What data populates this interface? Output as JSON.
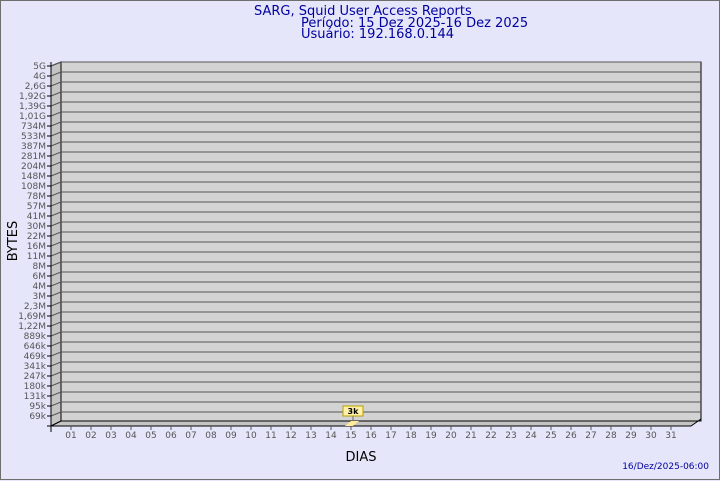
{
  "header": {
    "title": "SARG, Squid User Access Reports",
    "period": "Período: 15 Dez 2025-16 Dez 2025",
    "user": "Usuário: 192.168.0.144"
  },
  "footer": {
    "timestamp": "16/Dez/2025-06:00"
  },
  "colors": {
    "background": "#e6e6fa",
    "plot": "#d3d3d3",
    "bar": "#ffeb99",
    "title": "#0000a0"
  },
  "chart_data": {
    "type": "bar",
    "xlabel": "DIAS",
    "ylabel": "BYTES",
    "grid": true,
    "y_scale": "log",
    "y_ticks": [
      "5G",
      "4G",
      "2,6G",
      "1,92G",
      "1,39G",
      "1,01G",
      "734M",
      "533M",
      "387M",
      "281M",
      "204M",
      "148M",
      "108M",
      "78M",
      "57M",
      "41M",
      "30M",
      "22M",
      "16M",
      "11M",
      "8M",
      "6M",
      "4M",
      "3M",
      "2,3M",
      "1,69M",
      "1,22M",
      "889k",
      "646k",
      "469k",
      "341k",
      "247k",
      "180k",
      "131k",
      "95k",
      "69k"
    ],
    "categories": [
      "01",
      "02",
      "03",
      "04",
      "05",
      "06",
      "07",
      "08",
      "09",
      "10",
      "11",
      "12",
      "13",
      "14",
      "15",
      "16",
      "17",
      "18",
      "19",
      "20",
      "21",
      "22",
      "23",
      "24",
      "25",
      "26",
      "27",
      "28",
      "29",
      "30",
      "31"
    ],
    "bars": [
      {
        "category": "15",
        "value": 3000,
        "label": "3k"
      }
    ]
  }
}
